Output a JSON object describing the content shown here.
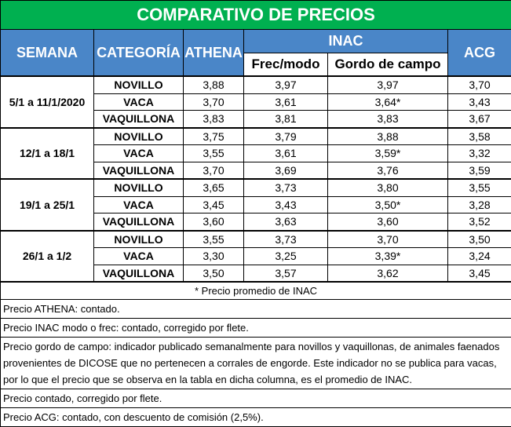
{
  "header": {
    "title": "COMPARATIVO DE PRECIOS",
    "columns": {
      "week": "SEMANA",
      "category": "CATEGORÍA",
      "athena": "ATHENA",
      "inac": "INAC",
      "frec": "Frec/modo",
      "gordo": "Gordo de campo",
      "acg": "ACG"
    }
  },
  "table": {
    "groups": [
      {
        "week": "5/1 a 11/1/2020",
        "rows": [
          [
            "NOVILLO",
            "3,88",
            "3,97",
            "3,97",
            "3,70"
          ],
          [
            "VACA",
            "3,70",
            "3,61",
            "3,64*",
            "3,43"
          ],
          [
            "VAQUILLONA",
            "3,83",
            "3,81",
            "3,83",
            "3,67"
          ]
        ]
      },
      {
        "week": "12/1 a 18/1",
        "rows": [
          [
            "NOVILLO",
            "3,75",
            "3,79",
            "3,88",
            "3,58"
          ],
          [
            "VACA",
            "3,55",
            "3,61",
            "3,59*",
            "3,32"
          ],
          [
            "VAQUILLONA",
            "3,70",
            "3,69",
            "3,76",
            "3,59"
          ]
        ]
      },
      {
        "week": "19/1 a 25/1",
        "rows": [
          [
            "NOVILLO",
            "3,65",
            "3,73",
            "3,80",
            "3,55"
          ],
          [
            "VACA",
            "3,45",
            "3,43",
            "3,50*",
            "3,28"
          ],
          [
            "VAQUILLONA",
            "3,60",
            "3,63",
            "3,60",
            "3,52"
          ]
        ]
      },
      {
        "week": "26/1 a 1/2",
        "rows": [
          [
            "NOVILLO",
            "3,55",
            "3,73",
            "3,70",
            "3,50"
          ],
          [
            "VACA",
            "3,30",
            "3,25",
            "3,39*",
            "3,24"
          ],
          [
            "VAQUILLONA",
            "3,50",
            "3,57",
            "3,62",
            "3,45"
          ]
        ]
      }
    ]
  },
  "footnote": "* Precio promedio de INAC",
  "notes": [
    "Precio ATHENA: contado.",
    "Precio INAC modo o frec: contado, corregido por flete.",
    "Precio gordo de campo: indicador publicado semanalmente para novillos y vaquillonas, de animales faenados provenientes de DICOSE que no pertenecen a corrales de engorde. Este indicador no se publica para vacas, por lo que el precio que se observa en la tabla en dicha columna, es el promedio de INAC.",
    "Precio contado, corregido por flete.",
    "Precio ACG: contado, con descuento de comisión (2,5%)."
  ]
}
